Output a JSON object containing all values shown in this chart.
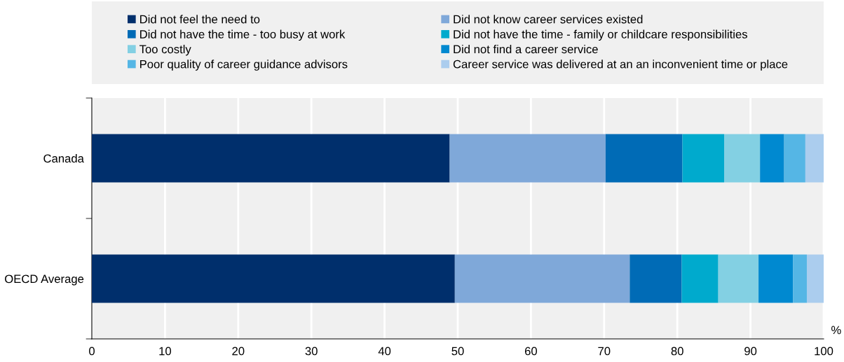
{
  "chart_data": {
    "type": "bar",
    "orientation": "horizontal",
    "stacked": true,
    "xlabel": "%",
    "categories": [
      "Canada",
      "OECD Average"
    ],
    "series": [
      {
        "name": "Did not feel the need to",
        "color": "#002f6c",
        "values": [
          48.9,
          49.6
        ]
      },
      {
        "name": "Did not know career services existed",
        "color": "#7fa8d9",
        "values": [
          21.3,
          23.9
        ]
      },
      {
        "name": "Did not have the time - too busy at work",
        "color": "#006bb6",
        "values": [
          10.5,
          7.1
        ]
      },
      {
        "name": "Did not have the time - family or childcare responsibilities",
        "color": "#00aacd",
        "values": [
          5.7,
          5.0
        ]
      },
      {
        "name": "Too costly",
        "color": "#83d0e3",
        "values": [
          4.9,
          5.5
        ]
      },
      {
        "name": "Did not find a career service",
        "color": "#0089d0",
        "values": [
          3.3,
          4.7
        ]
      },
      {
        "name": "Poor quality of career guidance advisors",
        "color": "#55b6e5",
        "values": [
          2.9,
          1.9
        ]
      },
      {
        "name": "Career service was delivered at an an inconvenient time or place",
        "color": "#abcdee",
        "values": [
          2.5,
          2.3
        ]
      }
    ],
    "xlim": [
      0,
      100
    ],
    "xticks": [
      0,
      10,
      20,
      30,
      40,
      50,
      60,
      70,
      80,
      90,
      100
    ],
    "grid": "x",
    "legend": "top"
  }
}
